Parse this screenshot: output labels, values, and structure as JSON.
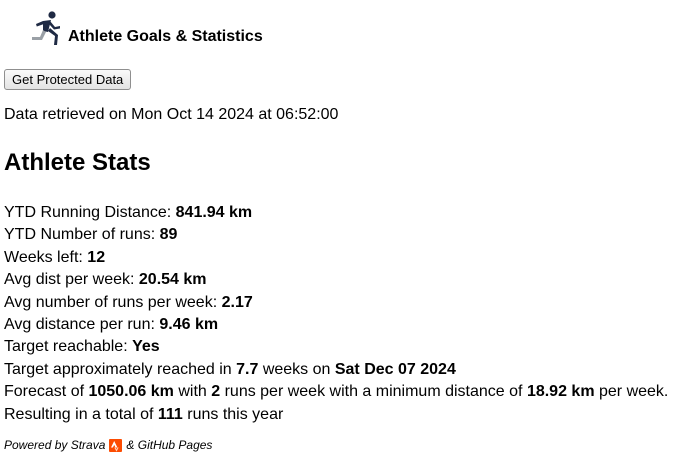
{
  "header": {
    "title": "Athlete Goals & Statistics",
    "icon": "runner-icon"
  },
  "button": {
    "label": "Get Protected Data"
  },
  "retrieved": "Data retrieved on Mon Oct 14 2024 at 06:52:00",
  "section_title": "Athlete Stats",
  "stats": {
    "ytd_distance_label": "YTD Running Distance: ",
    "ytd_distance_value": "841.94 km",
    "ytd_runs_label": "YTD Number of runs: ",
    "ytd_runs_value": "89",
    "weeks_left_label": "Weeks left: ",
    "weeks_left_value": "12",
    "avg_dist_week_label": "Avg dist per week: ",
    "avg_dist_week_value": "20.54 km",
    "avg_runs_week_label": "Avg number of runs per week: ",
    "avg_runs_week_value": "2.17",
    "avg_dist_run_label": "Avg distance per run: ",
    "avg_dist_run_value": "9.46 km",
    "reachable_label": "Target reachable: ",
    "reachable_value": "Yes",
    "target": {
      "prefix": "Target approximately reached in ",
      "weeks": "7.7",
      "middle": " weeks on ",
      "date": "Sat Dec 07 2024"
    },
    "forecast": {
      "prefix": "Forecast of ",
      "distance": "1050.06 km",
      "with": " with ",
      "runs": "2",
      "middle": " runs per week with a minimum distance of ",
      "min_distance": "18.92 km",
      "suffix": " per week."
    },
    "total": {
      "prefix": "Resulting in a total of ",
      "runs": "111",
      "suffix": " runs this year"
    }
  },
  "footer": {
    "prefix": "Powered by Strava",
    "suffix": " & GitHub Pages",
    "accent": "#fc4c02"
  }
}
